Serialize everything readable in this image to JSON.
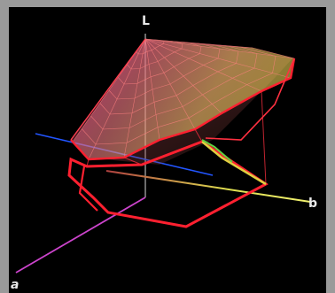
{
  "chart_data": {
    "type": "3d-surface",
    "axes": [
      {
        "key": "L",
        "label": "L",
        "color": "#e8e8e8"
      },
      {
        "key": "a",
        "label": "a",
        "color": "#2255ff",
        "hidden_label": true
      },
      {
        "key": "b",
        "label": "b",
        "color": "#e8e860"
      },
      {
        "key": "a_neg",
        "label": "a",
        "color": "#cc44cc"
      }
    ],
    "series": [
      {
        "kind": "gamut-wireframe",
        "color": "#ff3040"
      },
      {
        "kind": "gamut-outline",
        "color": "#ff2030"
      }
    ],
    "grid": false,
    "legend": "none"
  }
}
